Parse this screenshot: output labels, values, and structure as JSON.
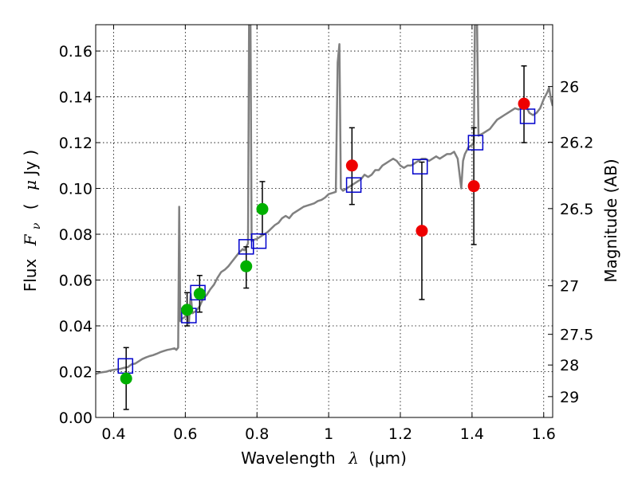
{
  "chart_data": {
    "type": "scatter",
    "title": "",
    "xlabel": {
      "prefix": "Wavelength",
      "symbol": "λ",
      "unit": "(μm)"
    },
    "ylabel": {
      "prefix": "Flux",
      "symbol": "F",
      "subscript": "ν",
      "unit_open": "(",
      "unit_mu": "μ",
      "unit_rest": "Jy )"
    },
    "y2label": "Magnitude (AB)",
    "xlim": [
      0.35,
      1.625
    ],
    "ylim": [
      0.0,
      0.1715
    ],
    "grid": true,
    "x_ticks": [
      0.4,
      0.6,
      0.8,
      1.0,
      1.2,
      1.4,
      1.6
    ],
    "x_tick_labels": [
      "0.4",
      "0.6",
      "0.8",
      "1",
      "1.2",
      "1.4",
      "1.6"
    ],
    "y_ticks": [
      0.0,
      0.02,
      0.04,
      0.06,
      0.08,
      0.1,
      0.12,
      0.14,
      0.16
    ],
    "y_tick_labels": [
      "0.00",
      "0.02",
      "0.04",
      "0.06",
      "0.08",
      "0.10",
      "0.12",
      "0.14",
      "0.16"
    ],
    "mag_ticks": [
      {
        "label": "26",
        "flux": 0.1445
      },
      {
        "label": "26.2",
        "flux": 0.1202
      },
      {
        "label": "26.5",
        "flux": 0.0912
      },
      {
        "label": "27",
        "flux": 0.0575
      },
      {
        "label": "27.5",
        "flux": 0.0363
      },
      {
        "label": "28",
        "flux": 0.0229
      },
      {
        "label": "29",
        "flux": 0.0091
      }
    ],
    "colors": {
      "spectrum": "#808080",
      "model": "#0000cc",
      "green": "#00b000",
      "red": "#ee0000",
      "error": "#000000",
      "grid": "#000000"
    },
    "spectrum": [
      [
        0.35,
        0.019
      ],
      [
        0.36,
        0.0195
      ],
      [
        0.37,
        0.0198
      ],
      [
        0.38,
        0.02
      ],
      [
        0.39,
        0.0205
      ],
      [
        0.4,
        0.0208
      ],
      [
        0.41,
        0.021
      ],
      [
        0.42,
        0.0213
      ],
      [
        0.43,
        0.0217
      ],
      [
        0.44,
        0.022
      ],
      [
        0.45,
        0.0232
      ],
      [
        0.46,
        0.0235
      ],
      [
        0.47,
        0.0245
      ],
      [
        0.48,
        0.0255
      ],
      [
        0.49,
        0.0262
      ],
      [
        0.5,
        0.0268
      ],
      [
        0.51,
        0.0272
      ],
      [
        0.52,
        0.0278
      ],
      [
        0.53,
        0.0285
      ],
      [
        0.54,
        0.029
      ],
      [
        0.55,
        0.0295
      ],
      [
        0.56,
        0.0298
      ],
      [
        0.57,
        0.0302
      ],
      [
        0.575,
        0.0295
      ],
      [
        0.58,
        0.0305
      ],
      [
        0.583,
        0.092
      ],
      [
        0.586,
        0.042
      ],
      [
        0.59,
        0.043
      ],
      [
        0.6,
        0.044
      ],
      [
        0.605,
        0.047
      ],
      [
        0.61,
        0.041
      ],
      [
        0.615,
        0.054
      ],
      [
        0.62,
        0.0455
      ],
      [
        0.63,
        0.0465
      ],
      [
        0.64,
        0.0485
      ],
      [
        0.65,
        0.052
      ],
      [
        0.66,
        0.0535
      ],
      [
        0.67,
        0.056
      ],
      [
        0.68,
        0.058
      ],
      [
        0.69,
        0.061
      ],
      [
        0.7,
        0.0635
      ],
      [
        0.71,
        0.0645
      ],
      [
        0.72,
        0.066
      ],
      [
        0.73,
        0.068
      ],
      [
        0.74,
        0.07
      ],
      [
        0.75,
        0.072
      ],
      [
        0.76,
        0.0735
      ],
      [
        0.765,
        0.073
      ],
      [
        0.77,
        0.0745
      ],
      [
        0.775,
        0.076
      ],
      [
        0.778,
        0.1715
      ],
      [
        0.782,
        0.1715
      ],
      [
        0.785,
        0.077
      ],
      [
        0.79,
        0.0775
      ],
      [
        0.8,
        0.078
      ],
      [
        0.81,
        0.079
      ],
      [
        0.82,
        0.08
      ],
      [
        0.83,
        0.081
      ],
      [
        0.84,
        0.0825
      ],
      [
        0.85,
        0.084
      ],
      [
        0.86,
        0.085
      ],
      [
        0.87,
        0.087
      ],
      [
        0.88,
        0.088
      ],
      [
        0.89,
        0.087
      ],
      [
        0.9,
        0.089
      ],
      [
        0.91,
        0.09
      ],
      [
        0.92,
        0.091
      ],
      [
        0.93,
        0.092
      ],
      [
        0.94,
        0.0925
      ],
      [
        0.95,
        0.093
      ],
      [
        0.96,
        0.0935
      ],
      [
        0.97,
        0.0945
      ],
      [
        0.98,
        0.095
      ],
      [
        0.99,
        0.096
      ],
      [
        1.0,
        0.0975
      ],
      [
        1.01,
        0.098
      ],
      [
        1.02,
        0.0985
      ],
      [
        1.025,
        0.155
      ],
      [
        1.03,
        0.163
      ],
      [
        1.034,
        0.1
      ],
      [
        1.04,
        0.099
      ],
      [
        1.05,
        0.1
      ],
      [
        1.06,
        0.101
      ],
      [
        1.07,
        0.102
      ],
      [
        1.08,
        0.103
      ],
      [
        1.09,
        0.104
      ],
      [
        1.1,
        0.106
      ],
      [
        1.11,
        0.105
      ],
      [
        1.12,
        0.106
      ],
      [
        1.13,
        0.108
      ],
      [
        1.14,
        0.108
      ],
      [
        1.15,
        0.11
      ],
      [
        1.16,
        0.111
      ],
      [
        1.17,
        0.112
      ],
      [
        1.18,
        0.113
      ],
      [
        1.19,
        0.112
      ],
      [
        1.2,
        0.11
      ],
      [
        1.21,
        0.109
      ],
      [
        1.22,
        0.11
      ],
      [
        1.23,
        0.11
      ],
      [
        1.24,
        0.111
      ],
      [
        1.25,
        0.112
      ],
      [
        1.26,
        0.113
      ],
      [
        1.27,
        0.113
      ],
      [
        1.28,
        0.112
      ],
      [
        1.29,
        0.113
      ],
      [
        1.3,
        0.114
      ],
      [
        1.31,
        0.113
      ],
      [
        1.32,
        0.114
      ],
      [
        1.33,
        0.115
      ],
      [
        1.34,
        0.115
      ],
      [
        1.35,
        0.116
      ],
      [
        1.36,
        0.113
      ],
      [
        1.37,
        0.1
      ],
      [
        1.375,
        0.112
      ],
      [
        1.38,
        0.115
      ],
      [
        1.39,
        0.118
      ],
      [
        1.4,
        0.119
      ],
      [
        1.405,
        0.12
      ],
      [
        1.408,
        0.1715
      ],
      [
        1.414,
        0.1715
      ],
      [
        1.418,
        0.123
      ],
      [
        1.43,
        0.124
      ],
      [
        1.44,
        0.125
      ],
      [
        1.45,
        0.126
      ],
      [
        1.46,
        0.128
      ],
      [
        1.47,
        0.13
      ],
      [
        1.48,
        0.131
      ],
      [
        1.49,
        0.132
      ],
      [
        1.5,
        0.133
      ],
      [
        1.51,
        0.134
      ],
      [
        1.52,
        0.135
      ],
      [
        1.53,
        0.1345
      ],
      [
        1.54,
        0.1355
      ],
      [
        1.55,
        0.136
      ],
      [
        1.56,
        0.133
      ],
      [
        1.57,
        0.132
      ],
      [
        1.58,
        0.133
      ],
      [
        1.59,
        0.135
      ],
      [
        1.6,
        0.139
      ],
      [
        1.61,
        0.142
      ],
      [
        1.615,
        0.144
      ],
      [
        1.62,
        0.139
      ],
      [
        1.625,
        0.136
      ]
    ],
    "model_points": [
      {
        "x": 0.433,
        "y": 0.0225
      },
      {
        "x": 0.61,
        "y": 0.0445
      },
      {
        "x": 0.635,
        "y": 0.0545
      },
      {
        "x": 0.77,
        "y": 0.0745
      },
      {
        "x": 0.805,
        "y": 0.077
      },
      {
        "x": 1.07,
        "y": 0.1015
      },
      {
        "x": 1.255,
        "y": 0.1095
      },
      {
        "x": 1.41,
        "y": 0.12
      },
      {
        "x": 1.555,
        "y": 0.1315
      }
    ],
    "green_points": [
      {
        "x": 0.435,
        "y": 0.017,
        "err_lo": 0.0035,
        "err_hi": 0.0305
      },
      {
        "x": 0.605,
        "y": 0.047,
        "err_lo": 0.04,
        "err_hi": 0.0545
      },
      {
        "x": 0.64,
        "y": 0.054,
        "err_lo": 0.046,
        "err_hi": 0.062
      },
      {
        "x": 0.77,
        "y": 0.066,
        "err_lo": 0.0565,
        "err_hi": 0.0745
      },
      {
        "x": 0.815,
        "y": 0.091,
        "err_lo": 0.08,
        "err_hi": 0.103
      }
    ],
    "red_points": [
      {
        "x": 1.065,
        "y": 0.11,
        "err_lo": 0.093,
        "err_hi": 0.1265
      },
      {
        "x": 1.26,
        "y": 0.0815,
        "err_lo": 0.0515,
        "err_hi": 0.1115
      },
      {
        "x": 1.405,
        "y": 0.101,
        "err_lo": 0.0755,
        "err_hi": 0.1265
      },
      {
        "x": 1.545,
        "y": 0.137,
        "err_lo": 0.12,
        "err_hi": 0.1535
      }
    ]
  }
}
